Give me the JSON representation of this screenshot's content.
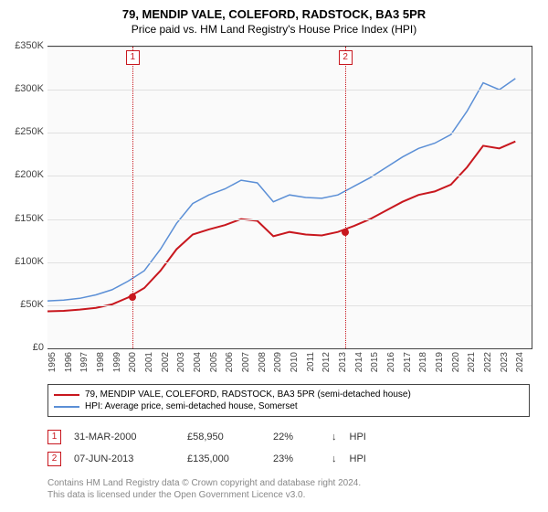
{
  "title": "79, MENDIP VALE, COLEFORD, RADSTOCK, BA3 5PR",
  "subtitle": "Price paid vs. HM Land Registry's House Price Index (HPI)",
  "chart": {
    "type": "line",
    "background_color": "#fafafa",
    "grid_color": "#e0e0e0",
    "axis_color": "#444444",
    "x_years": [
      1995,
      1996,
      1997,
      1998,
      1999,
      2000,
      2001,
      2002,
      2003,
      2004,
      2005,
      2006,
      2007,
      2008,
      2009,
      2010,
      2011,
      2012,
      2013,
      2014,
      2015,
      2016,
      2017,
      2018,
      2019,
      2020,
      2021,
      2022,
      2023,
      2024
    ],
    "x_min": 1995,
    "x_max": 2025,
    "ylim": [
      0,
      350000
    ],
    "ytick_step": 50000,
    "y_tick_labels": [
      "£0",
      "£50K",
      "£100K",
      "£150K",
      "£200K",
      "£250K",
      "£300K",
      "£350K"
    ],
    "series": [
      {
        "name": "property",
        "color": "#c8171e",
        "width": 2,
        "points": [
          [
            1995,
            43000
          ],
          [
            1996,
            43500
          ],
          [
            1997,
            45000
          ],
          [
            1998,
            47000
          ],
          [
            1999,
            51000
          ],
          [
            2000,
            58950
          ],
          [
            2001,
            70000
          ],
          [
            2002,
            90000
          ],
          [
            2003,
            115000
          ],
          [
            2004,
            132000
          ],
          [
            2005,
            138000
          ],
          [
            2006,
            143000
          ],
          [
            2007,
            150000
          ],
          [
            2008,
            148000
          ],
          [
            2009,
            130000
          ],
          [
            2010,
            135000
          ],
          [
            2011,
            132000
          ],
          [
            2012,
            131000
          ],
          [
            2013,
            135000
          ],
          [
            2014,
            142000
          ],
          [
            2015,
            150000
          ],
          [
            2016,
            160000
          ],
          [
            2017,
            170000
          ],
          [
            2018,
            178000
          ],
          [
            2019,
            182000
          ],
          [
            2020,
            190000
          ],
          [
            2021,
            210000
          ],
          [
            2022,
            235000
          ],
          [
            2023,
            232000
          ],
          [
            2024,
            240000
          ]
        ]
      },
      {
        "name": "hpi",
        "color": "#5b8fd6",
        "width": 1.5,
        "points": [
          [
            1995,
            55000
          ],
          [
            1996,
            56000
          ],
          [
            1997,
            58000
          ],
          [
            1998,
            62000
          ],
          [
            1999,
            68000
          ],
          [
            2000,
            78000
          ],
          [
            2001,
            90000
          ],
          [
            2002,
            115000
          ],
          [
            2003,
            145000
          ],
          [
            2004,
            168000
          ],
          [
            2005,
            178000
          ],
          [
            2006,
            185000
          ],
          [
            2007,
            195000
          ],
          [
            2008,
            192000
          ],
          [
            2009,
            170000
          ],
          [
            2010,
            178000
          ],
          [
            2011,
            175000
          ],
          [
            2012,
            174000
          ],
          [
            2013,
            178000
          ],
          [
            2014,
            188000
          ],
          [
            2015,
            198000
          ],
          [
            2016,
            210000
          ],
          [
            2017,
            222000
          ],
          [
            2018,
            232000
          ],
          [
            2019,
            238000
          ],
          [
            2020,
            248000
          ],
          [
            2021,
            275000
          ],
          [
            2022,
            308000
          ],
          [
            2023,
            300000
          ],
          [
            2024,
            313000
          ]
        ]
      }
    ],
    "markers": [
      {
        "n": "1",
        "year": 2000.25,
        "price": 58950,
        "color": "#c8171e"
      },
      {
        "n": "2",
        "year": 2013.43,
        "price": 135000,
        "color": "#c8171e"
      }
    ]
  },
  "legend": {
    "items": [
      {
        "color": "#c8171e",
        "label": "79, MENDIP VALE, COLEFORD, RADSTOCK, BA3 5PR (semi-detached house)"
      },
      {
        "color": "#5b8fd6",
        "label": "HPI: Average price, semi-detached house, Somerset"
      }
    ]
  },
  "sales": [
    {
      "n": "1",
      "color": "#c8171e",
      "date": "31-MAR-2000",
      "price": "£58,950",
      "pct": "22%",
      "arrow": "↓",
      "tag": "HPI"
    },
    {
      "n": "2",
      "color": "#c8171e",
      "date": "07-JUN-2013",
      "price": "£135,000",
      "pct": "23%",
      "arrow": "↓",
      "tag": "HPI"
    }
  ],
  "footer": {
    "line1": "Contains HM Land Registry data © Crown copyright and database right 2024.",
    "line2": "This data is licensed under the Open Government Licence v3.0."
  }
}
